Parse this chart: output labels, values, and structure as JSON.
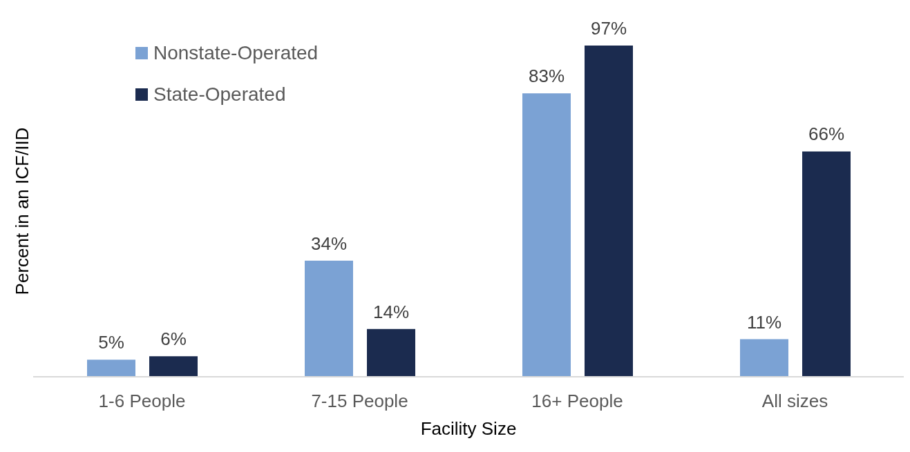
{
  "chart_data": {
    "type": "bar",
    "xlabel": "Facility Size",
    "ylabel": "Percent in an ICF/IID",
    "categories": [
      "1-6 People",
      "7-15 People",
      "16+ People",
      "All sizes"
    ],
    "series": [
      {
        "name": "Nonstate-Operated",
        "color": "#7ba2d4",
        "values": [
          5,
          34,
          83,
          11
        ],
        "value_labels": [
          "5%",
          "34%",
          "83%",
          "11%"
        ]
      },
      {
        "name": "State-Operated",
        "color": "#1b2b4f",
        "values": [
          6,
          14,
          97,
          66
        ],
        "value_labels": [
          "6%",
          "14%",
          "97%",
          "66%"
        ]
      }
    ],
    "legend": "top left",
    "grid": false
  }
}
